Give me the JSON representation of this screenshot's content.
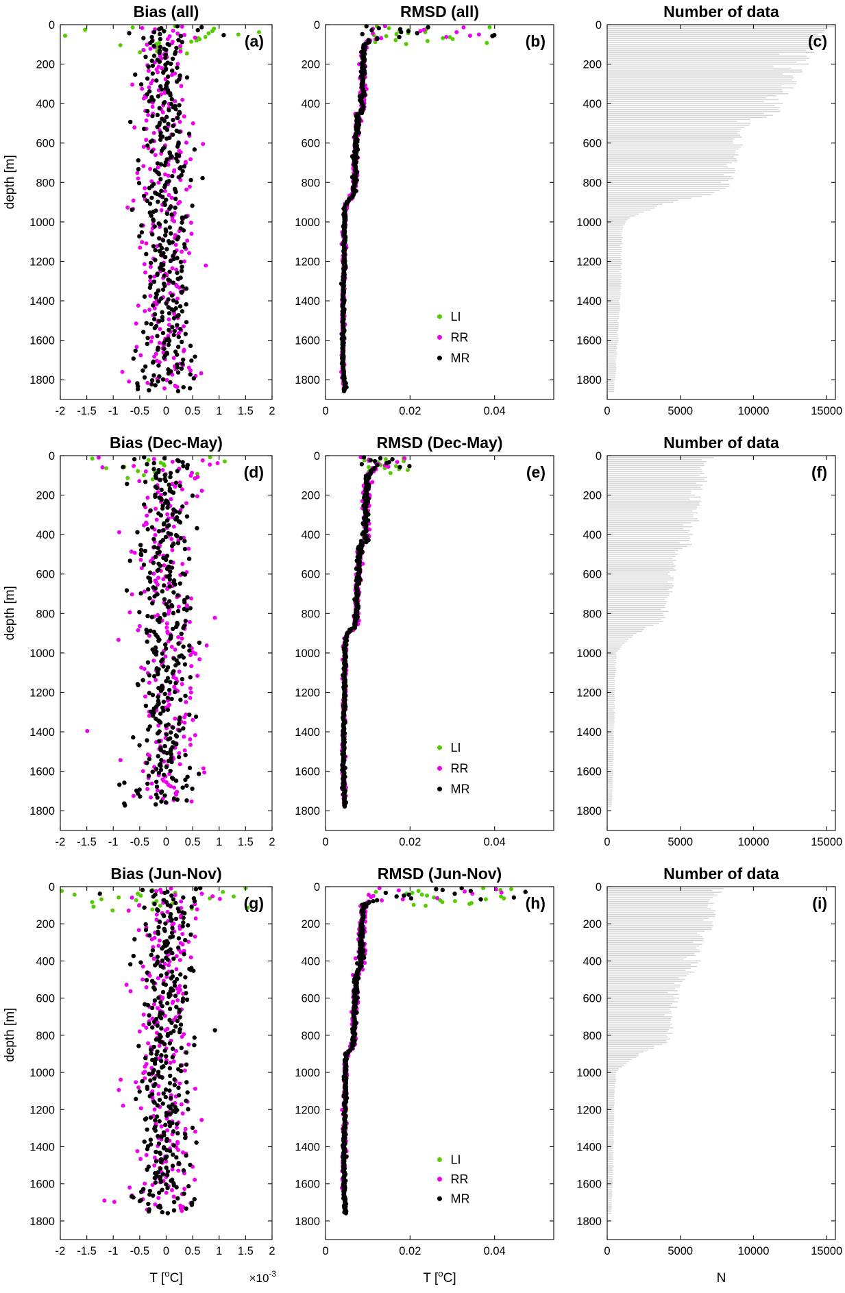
{
  "colors": {
    "LI": "#55cc00",
    "RR": "#ee00ee",
    "MR": "#000000",
    "bars": "#d4d4d4",
    "axis": "#1a1a1a",
    "text": "#000000"
  },
  "ylabel_text": "depth [m]",
  "chart_data": [
    {
      "id": "a",
      "row": 0,
      "col": 0,
      "type": "bias",
      "title": "Bias (all)",
      "letter": "(a)",
      "seed": 101,
      "xlim": [
        -2,
        2
      ],
      "xticks": [
        -2,
        -1.5,
        -1,
        -0.5,
        0,
        0.5,
        1,
        1.5,
        2
      ],
      "xtick_labels": [
        "-2",
        "-1.5",
        "-1",
        "-0.5",
        "0",
        "0.5",
        "1",
        "1.5",
        "2"
      ],
      "ylim": [
        0,
        1900
      ],
      "yticks": [
        0,
        200,
        400,
        600,
        800,
        1000,
        1200,
        1400,
        1600,
        1800
      ],
      "ylabel": "depth [m]",
      "series": [
        {
          "name": "LI",
          "color": "LI",
          "dmin": 8,
          "dmax": 150,
          "step": 6,
          "sigma": 0.5,
          "surface_depth": 70,
          "surface_boost": 1.8
        },
        {
          "name": "RR",
          "color": "RR",
          "dmin": 10,
          "dmax": 1845,
          "step": 7,
          "sigma": 0.27,
          "surface_depth": 70,
          "surface_boost": 2.2,
          "deep_depth": 1680,
          "deep_boost": 1.6
        },
        {
          "name": "MR",
          "color": "MR",
          "dmin": 8,
          "dmax": 1860,
          "step": 5,
          "sigma": 0.22,
          "surface_depth": 70,
          "surface_boost": 2.4,
          "deep_depth": 1680,
          "deep_boost": 1.6
        }
      ]
    },
    {
      "id": "b",
      "row": 0,
      "col": 1,
      "type": "rmsd",
      "title": "RMSD (all)",
      "letter": "(b)",
      "seed": 202,
      "xlim": [
        0,
        0.054
      ],
      "xticks": [
        0,
        0.02,
        0.04
      ],
      "xtick_labels": [
        "0",
        "0.02",
        "0.04"
      ],
      "ylim": [
        0,
        1900
      ],
      "yticks": [
        0,
        200,
        400,
        600,
        800,
        1000,
        1200,
        1400,
        1600,
        1800
      ],
      "surface": {
        "max_depth": 65,
        "min": 0.008,
        "max": 0.04
      },
      "profile": [
        [
          70,
          0.013
        ],
        [
          80,
          0.0105
        ],
        [
          100,
          0.0095
        ],
        [
          140,
          0.009
        ],
        [
          200,
          0.0089
        ],
        [
          300,
          0.0088
        ],
        [
          430,
          0.0087
        ],
        [
          450,
          0.008
        ],
        [
          460,
          0.0077
        ],
        [
          520,
          0.0074
        ],
        [
          600,
          0.0072
        ],
        [
          700,
          0.007
        ],
        [
          800,
          0.0069
        ],
        [
          860,
          0.0067
        ],
        [
          880,
          0.006
        ],
        [
          900,
          0.005
        ],
        [
          930,
          0.0047
        ],
        [
          1000,
          0.0045
        ],
        [
          1200,
          0.0044
        ],
        [
          1400,
          0.0042
        ],
        [
          1600,
          0.0041
        ],
        [
          1750,
          0.0042
        ],
        [
          1860,
          0.0046
        ]
      ],
      "legend": {
        "fx": 0.5,
        "depths": [
          1480,
          1585,
          1690
        ],
        "labels": [
          "LI",
          "RR",
          "MR"
        ]
      },
      "series": [
        {
          "name": "LI",
          "color": "LI",
          "dmin": 8,
          "dmax": 100,
          "step": 5,
          "mode": "surface"
        },
        {
          "name": "RR",
          "color": "RR",
          "dmin": 8,
          "dmax": 1850,
          "step": 6,
          "mode": "profile",
          "jitter": 0.05
        },
        {
          "name": "MR",
          "color": "MR",
          "dmin": 8,
          "dmax": 1860,
          "step": 5,
          "mode": "profile",
          "jitter": 0.035
        }
      ]
    },
    {
      "id": "c",
      "row": 0,
      "col": 2,
      "type": "barh",
      "title": "Number of data",
      "letter": "(c)",
      "seed": 303,
      "xlim": [
        0,
        15600
      ],
      "xticks": [
        0,
        5000,
        10000,
        15000
      ],
      "xtick_labels": [
        "0",
        "5000",
        "10000",
        "15000"
      ],
      "ylim": [
        0,
        1900
      ],
      "yticks": [
        0,
        200,
        400,
        600,
        800,
        1000,
        1200,
        1400,
        1600,
        1800
      ],
      "bar_step": 10,
      "noise": 0.05,
      "profile": [
        [
          10,
          15300
        ],
        [
          60,
          14800
        ],
        [
          120,
          14000
        ],
        [
          180,
          13400
        ],
        [
          240,
          12800
        ],
        [
          300,
          12400
        ],
        [
          360,
          12100
        ],
        [
          420,
          11500
        ],
        [
          450,
          11200
        ],
        [
          470,
          10400
        ],
        [
          500,
          10000
        ],
        [
          520,
          9300
        ],
        [
          560,
          9100
        ],
        [
          620,
          8900
        ],
        [
          700,
          8600
        ],
        [
          780,
          8300
        ],
        [
          840,
          7800
        ],
        [
          860,
          7000
        ],
        [
          880,
          5500
        ],
        [
          900,
          4500
        ],
        [
          920,
          3500
        ],
        [
          950,
          2500
        ],
        [
          980,
          1600
        ],
        [
          1000,
          1200
        ],
        [
          1050,
          1050
        ],
        [
          1150,
          1000
        ],
        [
          1300,
          950
        ],
        [
          1450,
          850
        ],
        [
          1600,
          750
        ],
        [
          1750,
          600
        ],
        [
          1860,
          450
        ]
      ]
    },
    {
      "id": "d",
      "row": 1,
      "col": 0,
      "type": "bias",
      "title": "Bias (Dec-May)",
      "letter": "(d)",
      "seed": 404,
      "xlim": [
        -2,
        2
      ],
      "xticks": [
        -2,
        -1.5,
        -1,
        -0.5,
        0,
        0.5,
        1,
        1.5,
        2
      ],
      "xtick_labels": [
        "-2",
        "-1.5",
        "-1",
        "-0.5",
        "0",
        "0.5",
        "1",
        "1.5",
        "2"
      ],
      "ylim": [
        0,
        1900
      ],
      "yticks": [
        0,
        200,
        400,
        600,
        800,
        1000,
        1200,
        1400,
        1600,
        1800
      ],
      "ylabel": "depth [m]",
      "series": [
        {
          "name": "LI",
          "color": "LI",
          "dmin": 8,
          "dmax": 120,
          "step": 7,
          "sigma": 0.4,
          "surface_depth": 70,
          "surface_boost": 1.8
        },
        {
          "name": "RR",
          "color": "RR",
          "dmin": 10,
          "dmax": 1760,
          "step": 7,
          "sigma": 0.3,
          "surface_depth": 70,
          "surface_boost": 2.0,
          "deep_depth": 1600,
          "deep_boost": 1.5
        },
        {
          "name": "MR",
          "color": "MR",
          "dmin": 8,
          "dmax": 1775,
          "step": 5,
          "sigma": 0.25,
          "surface_depth": 70,
          "surface_boost": 2.2,
          "deep_depth": 1600,
          "deep_boost": 1.5
        }
      ]
    },
    {
      "id": "e",
      "row": 1,
      "col": 1,
      "type": "rmsd",
      "title": "RMSD (Dec-May)",
      "letter": "(e)",
      "seed": 505,
      "xlim": [
        0,
        0.054
      ],
      "xticks": [
        0,
        0.02,
        0.04
      ],
      "xtick_labels": [
        "0",
        "0.02",
        "0.04"
      ],
      "ylim": [
        0,
        1900
      ],
      "yticks": [
        0,
        200,
        400,
        600,
        800,
        1000,
        1200,
        1400,
        1600,
        1800
      ],
      "surface": {
        "max_depth": 60,
        "min": 0.008,
        "max": 0.02
      },
      "profile": [
        [
          70,
          0.012
        ],
        [
          80,
          0.0108
        ],
        [
          100,
          0.0102
        ],
        [
          140,
          0.0098
        ],
        [
          200,
          0.0096
        ],
        [
          300,
          0.0095
        ],
        [
          430,
          0.0094
        ],
        [
          450,
          0.0087
        ],
        [
          460,
          0.0082
        ],
        [
          520,
          0.008
        ],
        [
          600,
          0.0077
        ],
        [
          700,
          0.0075
        ],
        [
          800,
          0.0073
        ],
        [
          860,
          0.007
        ],
        [
          880,
          0.0062
        ],
        [
          900,
          0.0052
        ],
        [
          930,
          0.0048
        ],
        [
          1000,
          0.0046
        ],
        [
          1200,
          0.0045
        ],
        [
          1400,
          0.0043
        ],
        [
          1600,
          0.0042
        ],
        [
          1780,
          0.0045
        ]
      ],
      "legend": {
        "fx": 0.5,
        "depths": [
          1480,
          1585,
          1690
        ],
        "labels": [
          "LI",
          "RR",
          "MR"
        ]
      },
      "series": [
        {
          "name": "LI",
          "color": "LI",
          "dmin": 8,
          "dmax": 90,
          "step": 5,
          "mode": "surface"
        },
        {
          "name": "RR",
          "color": "RR",
          "dmin": 8,
          "dmax": 1770,
          "step": 6,
          "mode": "profile",
          "jitter": 0.05
        },
        {
          "name": "MR",
          "color": "MR",
          "dmin": 8,
          "dmax": 1780,
          "step": 5,
          "mode": "profile",
          "jitter": 0.035
        }
      ]
    },
    {
      "id": "f",
      "row": 1,
      "col": 2,
      "type": "barh",
      "title": "Number of data",
      "letter": "(f)",
      "seed": 606,
      "xlim": [
        0,
        15600
      ],
      "xticks": [
        0,
        5000,
        10000,
        15000
      ],
      "xtick_labels": [
        "0",
        "5000",
        "10000",
        "15000"
      ],
      "ylim": [
        0,
        1900
      ],
      "yticks": [
        0,
        200,
        400,
        600,
        800,
        1000,
        1200,
        1400,
        1600,
        1800
      ],
      "bar_step": 10,
      "noise": 0.06,
      "profile": [
        [
          10,
          6900
        ],
        [
          100,
          6600
        ],
        [
          200,
          6300
        ],
        [
          300,
          6100
        ],
        [
          400,
          5700
        ],
        [
          450,
          5500
        ],
        [
          470,
          5100
        ],
        [
          520,
          4600
        ],
        [
          560,
          4500
        ],
        [
          700,
          4200
        ],
        [
          780,
          4000
        ],
        [
          840,
          3700
        ],
        [
          860,
          3300
        ],
        [
          880,
          2600
        ],
        [
          900,
          2100
        ],
        [
          930,
          1500
        ],
        [
          960,
          1000
        ],
        [
          1000,
          650
        ],
        [
          1100,
          550
        ],
        [
          1300,
          500
        ],
        [
          1500,
          430
        ],
        [
          1650,
          380
        ],
        [
          1780,
          300
        ]
      ]
    },
    {
      "id": "g",
      "row": 2,
      "col": 0,
      "type": "bias",
      "title": "Bias (Jun-Nov)",
      "letter": "(g)",
      "seed": 707,
      "xlim": [
        -2,
        2
      ],
      "xticks": [
        -2,
        -1.5,
        -1,
        -0.5,
        0,
        0.5,
        1,
        1.5,
        2
      ],
      "xtick_labels": [
        "-2",
        "-1.5",
        "-1",
        "-0.5",
        "0",
        "0.5",
        "1",
        "1.5",
        "2"
      ],
      "ylim": [
        0,
        1900
      ],
      "yticks": [
        0,
        200,
        400,
        600,
        800,
        1000,
        1200,
        1400,
        1600,
        1800
      ],
      "ylabel": "depth [m]",
      "xlabel": {
        "parts": [
          {
            "t": "T ["
          },
          {
            "t": "o",
            "sup": true
          },
          {
            "t": "C]"
          }
        ]
      },
      "x_offset_label": {
        "parts": [
          {
            "t": "×10"
          },
          {
            "t": "-3",
            "sup": true
          }
        ]
      },
      "series": [
        {
          "name": "LI",
          "color": "LI",
          "dmin": 8,
          "dmax": 130,
          "step": 5,
          "sigma": 0.8,
          "surface_depth": 70,
          "surface_boost": 1.8
        },
        {
          "name": "RR",
          "color": "RR",
          "dmin": 10,
          "dmax": 1750,
          "step": 7,
          "sigma": 0.28,
          "surface_depth": 70,
          "surface_boost": 2.2,
          "deep_depth": 1600,
          "deep_boost": 1.5
        },
        {
          "name": "MR",
          "color": "MR",
          "dmin": 8,
          "dmax": 1760,
          "step": 5,
          "sigma": 0.23,
          "surface_depth": 70,
          "surface_boost": 2.2,
          "deep_depth": 1600,
          "deep_boost": 1.5
        }
      ]
    },
    {
      "id": "h",
      "row": 2,
      "col": 1,
      "type": "rmsd",
      "title": "RMSD (Jun-Nov)",
      "letter": "(h)",
      "seed": 808,
      "xlim": [
        0,
        0.054
      ],
      "xticks": [
        0,
        0.02,
        0.04
      ],
      "xtick_labels": [
        "0",
        "0.02",
        "0.04"
      ],
      "ylim": [
        0,
        1900
      ],
      "yticks": [
        0,
        200,
        400,
        600,
        800,
        1000,
        1200,
        1400,
        1600,
        1800
      ],
      "xlabel": {
        "parts": [
          {
            "t": "T ["
          },
          {
            "t": "o",
            "sup": true
          },
          {
            "t": "C]"
          }
        ]
      },
      "surface": {
        "max_depth": 70,
        "min": 0.009,
        "max": 0.048
      },
      "profile": [
        [
          75,
          0.0125
        ],
        [
          85,
          0.0103
        ],
        [
          100,
          0.0092
        ],
        [
          140,
          0.0088
        ],
        [
          200,
          0.0086
        ],
        [
          300,
          0.0085
        ],
        [
          430,
          0.0084
        ],
        [
          450,
          0.0078
        ],
        [
          460,
          0.0075
        ],
        [
          520,
          0.0072
        ],
        [
          600,
          0.007
        ],
        [
          700,
          0.0068
        ],
        [
          800,
          0.0067
        ],
        [
          860,
          0.0065
        ],
        [
          880,
          0.0058
        ],
        [
          900,
          0.005
        ],
        [
          930,
          0.0048
        ],
        [
          1000,
          0.0047
        ],
        [
          1200,
          0.0046
        ],
        [
          1400,
          0.0044
        ],
        [
          1600,
          0.0043
        ],
        [
          1760,
          0.0047
        ]
      ],
      "legend": {
        "fx": 0.5,
        "depths": [
          1470,
          1575,
          1680
        ],
        "labels": [
          "LI",
          "RR",
          "MR"
        ]
      },
      "series": [
        {
          "name": "LI",
          "color": "LI",
          "dmin": 8,
          "dmax": 105,
          "step": 5,
          "mode": "surface"
        },
        {
          "name": "RR",
          "color": "RR",
          "dmin": 8,
          "dmax": 1750,
          "step": 6,
          "mode": "profile",
          "jitter": 0.05
        },
        {
          "name": "MR",
          "color": "MR",
          "dmin": 8,
          "dmax": 1760,
          "step": 5,
          "mode": "profile",
          "jitter": 0.035
        }
      ]
    },
    {
      "id": "i",
      "row": 2,
      "col": 2,
      "type": "barh",
      "title": "Number of data",
      "letter": "(i)",
      "seed": 909,
      "xlim": [
        0,
        15600
      ],
      "xticks": [
        0,
        5000,
        10000,
        15000
      ],
      "xtick_labels": [
        "0",
        "5000",
        "10000",
        "15000"
      ],
      "ylim": [
        0,
        1900
      ],
      "yticks": [
        0,
        200,
        400,
        600,
        800,
        1000,
        1200,
        1400,
        1600,
        1800
      ],
      "xlabel": {
        "parts": [
          {
            "t": "N"
          }
        ]
      },
      "bar_step": 10,
      "noise": 0.06,
      "profile": [
        [
          10,
          7600
        ],
        [
          100,
          7200
        ],
        [
          200,
          6900
        ],
        [
          300,
          6500
        ],
        [
          400,
          6100
        ],
        [
          450,
          5900
        ],
        [
          470,
          5400
        ],
        [
          520,
          4800
        ],
        [
          560,
          4700
        ],
        [
          700,
          4500
        ],
        [
          780,
          4300
        ],
        [
          840,
          4100
        ],
        [
          860,
          3700
        ],
        [
          880,
          2900
        ],
        [
          900,
          2300
        ],
        [
          930,
          1700
        ],
        [
          960,
          1100
        ],
        [
          1000,
          600
        ],
        [
          1100,
          500
        ],
        [
          1300,
          450
        ],
        [
          1500,
          400
        ],
        [
          1650,
          350
        ],
        [
          1760,
          280
        ]
      ]
    }
  ]
}
